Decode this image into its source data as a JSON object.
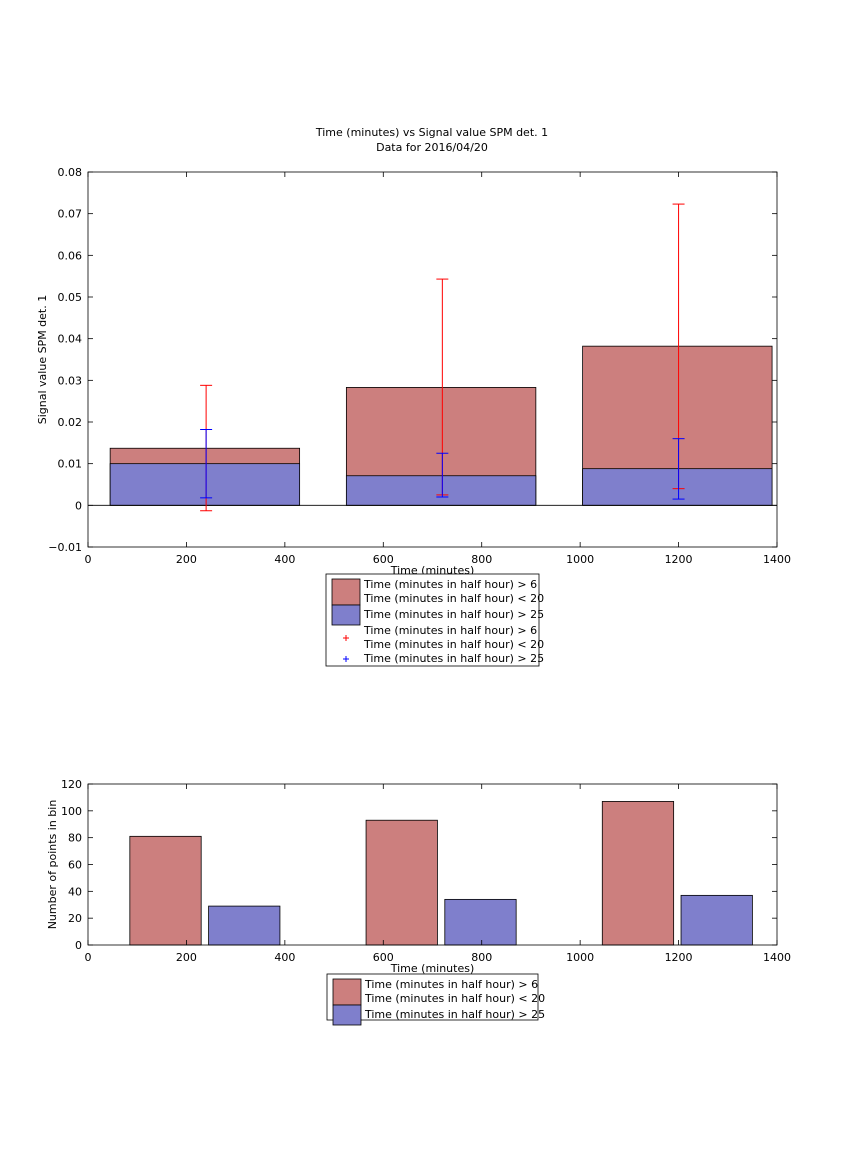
{
  "colors": {
    "bar_low": "#cc7f7e",
    "bar_high": "#7f7fcc",
    "err_low": "#ff0000",
    "err_high": "#0000ff"
  },
  "chart_data": [
    {
      "type": "bar",
      "title": "Time (minutes) vs Signal value SPM det. 1",
      "subtitle": "Data for 2016/04/20",
      "xlabel": "Time (minutes)",
      "ylabel": "Signal value SPM det. 1",
      "xlim": [
        0,
        1400
      ],
      "ylim": [
        -0.01,
        0.08
      ],
      "xticks": [
        0,
        200,
        400,
        600,
        800,
        1000,
        1200,
        1400
      ],
      "yticks": [
        -0.01,
        0,
        0.01,
        0.02,
        0.03,
        0.04,
        0.05,
        0.06,
        0.07,
        0.08
      ],
      "ytick_labels": [
        "−0.01",
        "0",
        "0.01",
        "0.02",
        "0.03",
        "0.04",
        "0.05",
        "0.06",
        "0.07",
        "0.08"
      ],
      "grid": false,
      "legend_position": "below",
      "series": [
        {
          "name": "Time (minutes in half hour) > 6\nTime (minutes in half hour) < 20",
          "bars": [
            {
              "x0": 45,
              "x1": 430,
              "value": 0.0137
            },
            {
              "x0": 525,
              "x1": 910,
              "value": 0.0283
            },
            {
              "x0": 1005,
              "x1": 1390,
              "value": 0.0382
            }
          ]
        },
        {
          "name": "Time (minutes in half hour) > 25",
          "bars": [
            {
              "x0": 45,
              "x1": 430,
              "value": 0.01
            },
            {
              "x0": 525,
              "x1": 910,
              "value": 0.0071
            },
            {
              "x0": 1005,
              "x1": 1390,
              "value": 0.0088
            }
          ]
        }
      ],
      "errorbars": [
        {
          "name": "Time (minutes in half hour) > 6\nTime (minutes in half hour) < 20",
          "points": [
            {
              "x": 240,
              "lo": -0.0013,
              "hi": 0.0288
            },
            {
              "x": 720,
              "lo": 0.0025,
              "hi": 0.0543
            },
            {
              "x": 1200,
              "lo": 0.004,
              "hi": 0.0723
            }
          ]
        },
        {
          "name": "Time (minutes in half hour) > 25",
          "points": [
            {
              "x": 240,
              "lo": 0.0018,
              "hi": 0.0182
            },
            {
              "x": 720,
              "lo": 0.002,
              "hi": 0.0125
            },
            {
              "x": 1200,
              "lo": 0.0015,
              "hi": 0.016
            }
          ]
        }
      ],
      "legend": [
        {
          "kind": "patch",
          "series": 0,
          "lines": [
            "Time (minutes in half hour) > 6",
            "Time (minutes in half hour) < 20"
          ]
        },
        {
          "kind": "patch",
          "series": 1,
          "lines": [
            "Time (minutes in half hour) > 25"
          ]
        },
        {
          "kind": "marker",
          "series": 0,
          "lines": [
            "Time (minutes in half hour) > 6",
            "Time (minutes in half hour) < 20"
          ]
        },
        {
          "kind": "marker",
          "series": 1,
          "lines": [
            "Time (minutes in half hour) > 25"
          ]
        }
      ]
    },
    {
      "type": "bar",
      "title": "",
      "xlabel": "Time (minutes)",
      "ylabel": "Number of points in bin",
      "xlim": [
        0,
        1400
      ],
      "ylim": [
        0,
        120
      ],
      "xticks": [
        0,
        200,
        400,
        600,
        800,
        1000,
        1200,
        1400
      ],
      "yticks": [
        0,
        20,
        40,
        60,
        80,
        100,
        120
      ],
      "ytick_labels": [
        "0",
        "20",
        "40",
        "60",
        "80",
        "100",
        "120"
      ],
      "grid": false,
      "legend_position": "below",
      "series": [
        {
          "name": "Time (minutes in half hour) > 6\nTime (minutes in half hour) < 20",
          "bars": [
            {
              "x0": 85,
              "x1": 230,
              "value": 81
            },
            {
              "x0": 565,
              "x1": 710,
              "value": 93
            },
            {
              "x0": 1045,
              "x1": 1190,
              "value": 107
            }
          ]
        },
        {
          "name": "Time (minutes in half hour) > 25",
          "bars": [
            {
              "x0": 245,
              "x1": 390,
              "value": 29
            },
            {
              "x0": 725,
              "x1": 870,
              "value": 34
            },
            {
              "x0": 1205,
              "x1": 1350,
              "value": 37
            }
          ]
        }
      ],
      "legend": [
        {
          "kind": "patch",
          "series": 0,
          "lines": [
            "Time (minutes in half hour) > 6",
            "Time (minutes in half hour) < 20"
          ]
        },
        {
          "kind": "patch",
          "series": 1,
          "lines": [
            "Time (minutes in half hour) > 25"
          ]
        }
      ]
    }
  ]
}
